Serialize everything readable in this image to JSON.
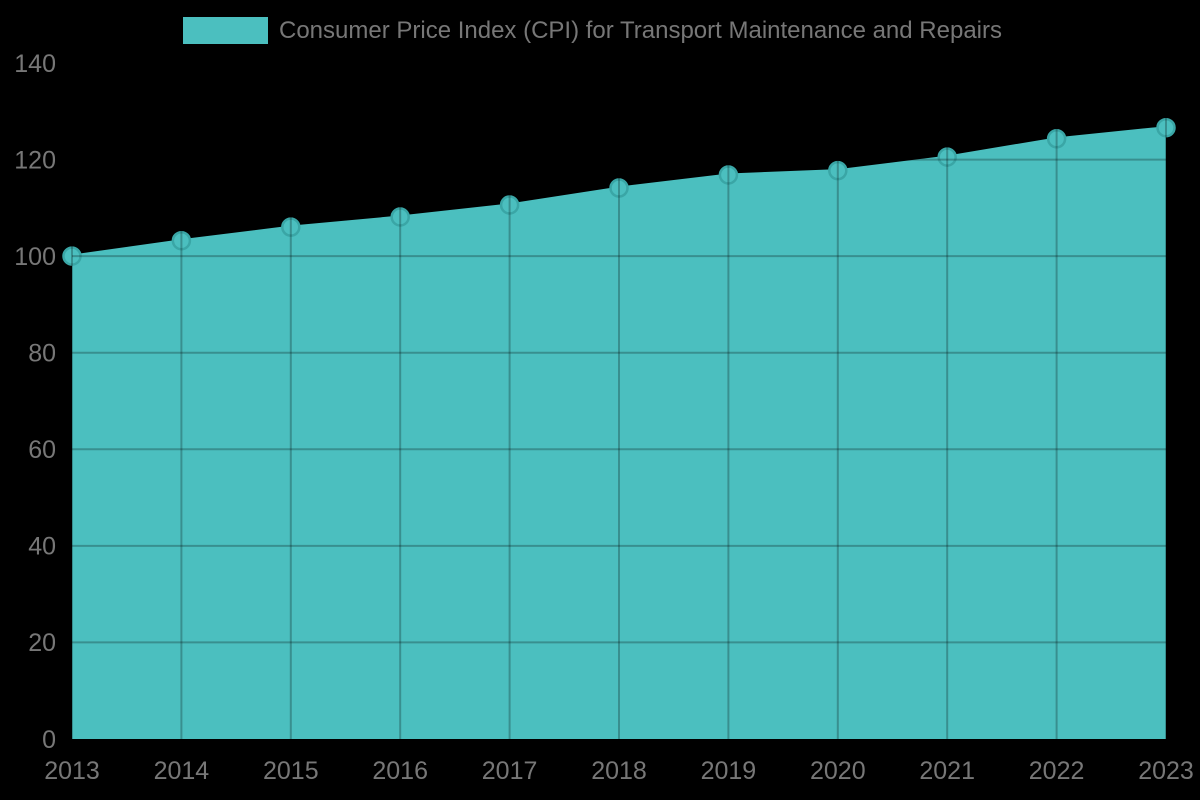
{
  "page": {
    "background_color": "#000000"
  },
  "legend": {
    "label": "Consumer Price Index (CPI) for Transport Maintenance and Repairs",
    "swatch_color": "#4BBFBF",
    "text_color": "#777777"
  },
  "chart_data": {
    "type": "area",
    "title": "",
    "xlabel": "",
    "ylabel": "",
    "categories": [
      "2013",
      "2014",
      "2015",
      "2016",
      "2017",
      "2018",
      "2019",
      "2020",
      "2021",
      "2022",
      "2023"
    ],
    "series": [
      {
        "name": "Consumer Price Index (CPI) for Transport Maintenance and Repairs",
        "values": [
          100,
          103.2,
          106,
          108.1,
          110.6,
          114.1,
          116.8,
          117.7,
          120.5,
          124.3,
          126.6
        ]
      }
    ],
    "ylim": [
      0,
      140
    ],
    "yticks": [
      0,
      20,
      40,
      60,
      80,
      100,
      120,
      140
    ],
    "grid": true,
    "legend_position": "top",
    "colors": {
      "area_fill": "#4BBFBF",
      "line": "#4BBFBF",
      "marker_fill": "#4BBFBF",
      "marker_stroke": "#3AA6A6",
      "gridline": "rgba(0,0,0,0.25)",
      "tick_text": "#777777"
    }
  }
}
